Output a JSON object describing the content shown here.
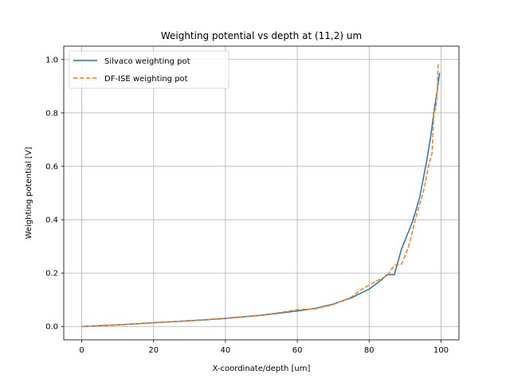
{
  "chart_data": {
    "type": "line",
    "title": "Weighting potential vs depth at (11,2) um",
    "xlabel": "X-coordinate/depth [um]",
    "ylabel": "Weighting potential [V]",
    "xlim": [
      -5,
      105
    ],
    "ylim": [
      -0.05,
      1.05
    ],
    "xticks": [
      0,
      20,
      40,
      60,
      80,
      100
    ],
    "yticks": [
      0.0,
      0.2,
      0.4,
      0.6,
      0.8,
      1.0
    ],
    "xtick_labels": [
      "0",
      "20",
      "40",
      "60",
      "80",
      "100"
    ],
    "ytick_labels": [
      "0.0",
      "0.2",
      "0.4",
      "0.6",
      "0.8",
      "1.0"
    ],
    "grid": true,
    "legend_position": "top-left",
    "series": [
      {
        "name": "Silvaco weighting pot",
        "color": "#1f77b4",
        "style": "solid",
        "points": [
          [
            0,
            0.0
          ],
          [
            10,
            0.006
          ],
          [
            20,
            0.014
          ],
          [
            30,
            0.021
          ],
          [
            40,
            0.03
          ],
          [
            50,
            0.042
          ],
          [
            60,
            0.058
          ],
          [
            65,
            0.068
          ],
          [
            70,
            0.084
          ],
          [
            75,
            0.107
          ],
          [
            80,
            0.14
          ],
          [
            83,
            0.17
          ],
          [
            85,
            0.194
          ],
          [
            87,
            0.194
          ],
          [
            89,
            0.29
          ],
          [
            92,
            0.39
          ],
          [
            94,
            0.48
          ],
          [
            96,
            0.62
          ],
          [
            97,
            0.7
          ],
          [
            98,
            0.8
          ],
          [
            99,
            0.89
          ],
          [
            99.6,
            0.95
          ]
        ]
      },
      {
        "name": "DF-ISE weighting pot",
        "color": "#ff7f0e",
        "style": "dashed",
        "points": [
          [
            0,
            0.0
          ],
          [
            10,
            0.006
          ],
          [
            20,
            0.014
          ],
          [
            30,
            0.022
          ],
          [
            40,
            0.031
          ],
          [
            50,
            0.043
          ],
          [
            55,
            0.052
          ],
          [
            60,
            0.063
          ],
          [
            65,
            0.066
          ],
          [
            70,
            0.082
          ],
          [
            75,
            0.11
          ],
          [
            78,
            0.14
          ],
          [
            82,
            0.17
          ],
          [
            85,
            0.19
          ],
          [
            87,
            0.23
          ],
          [
            89,
            0.233
          ],
          [
            91,
            0.3
          ],
          [
            93,
            0.41
          ],
          [
            95,
            0.5
          ],
          [
            96.5,
            0.6
          ],
          [
            97.5,
            0.65
          ],
          [
            98,
            0.8
          ],
          [
            98.6,
            0.82
          ],
          [
            99,
            0.9
          ],
          [
            99.2,
            0.99
          ]
        ]
      }
    ]
  }
}
